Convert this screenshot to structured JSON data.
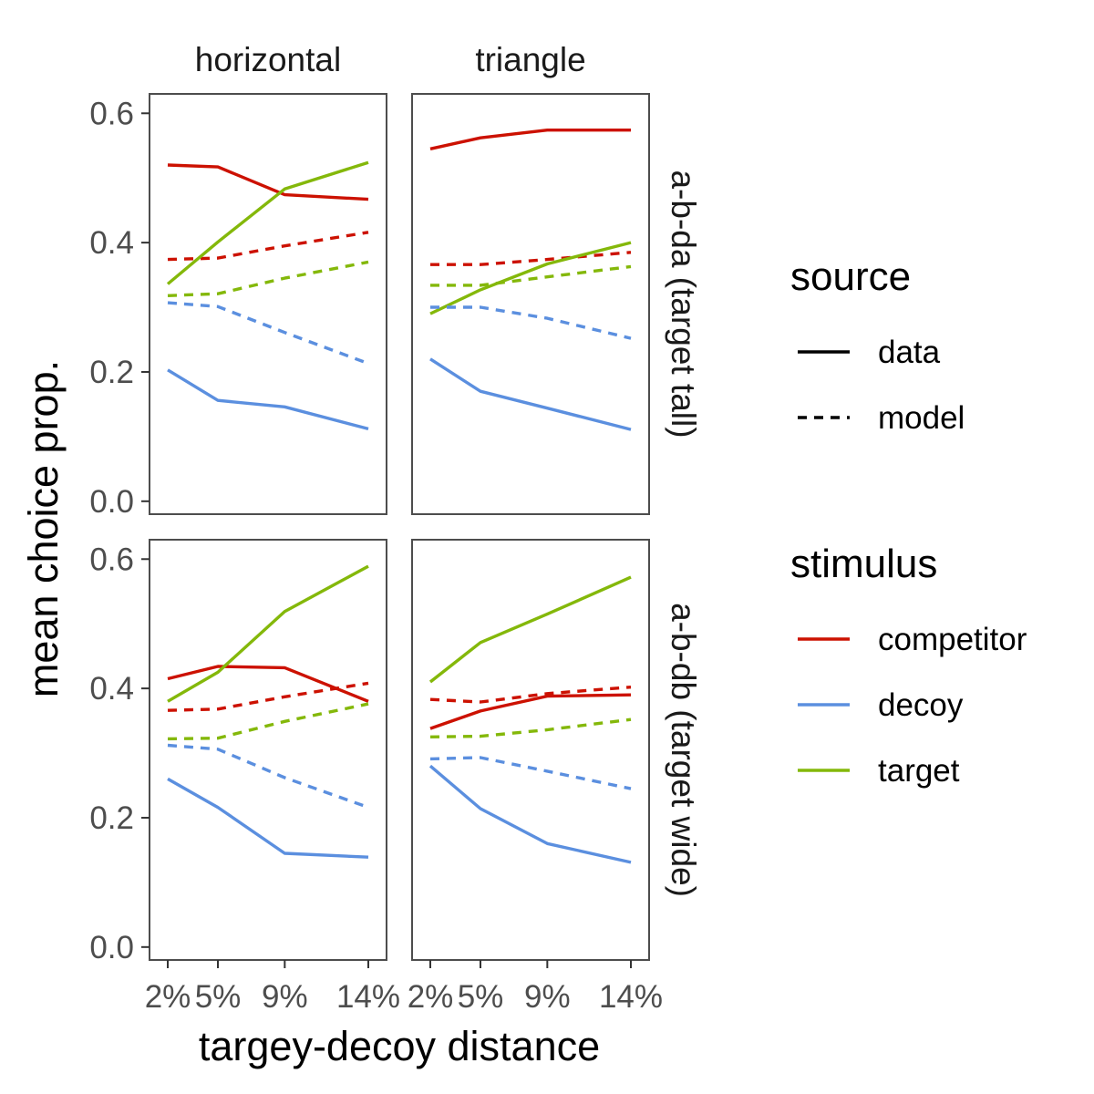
{
  "chart_data": {
    "type": "line",
    "xlabel": "targey-decoy distance",
    "ylabel": "mean choice prop.",
    "x_categories": [
      "2%",
      "5%",
      "9%",
      "14%"
    ],
    "x_values": [
      2,
      5,
      9,
      14
    ],
    "ylim": [
      -0.02,
      0.63
    ],
    "y_ticks": [
      0.0,
      0.2,
      0.4,
      0.6
    ],
    "y_tick_labels": [
      "0.0",
      "0.2",
      "0.4",
      "0.6"
    ],
    "grid": false,
    "facet_cols": [
      "horizontal",
      "triangle"
    ],
    "facet_rows": [
      "a-b-da (target tall)",
      "a-b-db (target wide)"
    ],
    "colors": {
      "competitor": "#cc1100",
      "decoy": "#5b8fdf",
      "target": "#84b80a"
    },
    "legend": {
      "position": "right",
      "source": {
        "title": "source",
        "items": [
          "data",
          "model"
        ]
      },
      "stimulus": {
        "title": "stimulus",
        "items": [
          "competitor",
          "decoy",
          "target"
        ]
      }
    },
    "panels": [
      {
        "col": "horizontal",
        "row": "a-b-da (target tall)",
        "series": [
          {
            "stimulus": "competitor",
            "source": "data",
            "values": [
              0.52,
              0.517,
              0.474,
              0.467
            ]
          },
          {
            "stimulus": "competitor",
            "source": "model",
            "values": [
              0.374,
              0.376,
              0.395,
              0.416
            ]
          },
          {
            "stimulus": "target",
            "source": "data",
            "values": [
              0.336,
              0.401,
              0.483,
              0.524
            ]
          },
          {
            "stimulus": "target",
            "source": "model",
            "values": [
              0.318,
              0.321,
              0.345,
              0.37
            ]
          },
          {
            "stimulus": "decoy",
            "source": "data",
            "values": [
              0.203,
              0.156,
              0.146,
              0.112
            ]
          },
          {
            "stimulus": "decoy",
            "source": "model",
            "values": [
              0.307,
              0.301,
              0.261,
              0.213
            ]
          }
        ]
      },
      {
        "col": "triangle",
        "row": "a-b-da (target tall)",
        "series": [
          {
            "stimulus": "competitor",
            "source": "data",
            "values": [
              0.545,
              0.562,
              0.574,
              0.574
            ]
          },
          {
            "stimulus": "competitor",
            "source": "model",
            "values": [
              0.366,
              0.366,
              0.374,
              0.385
            ]
          },
          {
            "stimulus": "target",
            "source": "data",
            "values": [
              0.29,
              0.327,
              0.367,
              0.4
            ]
          },
          {
            "stimulus": "target",
            "source": "model",
            "values": [
              0.334,
              0.334,
              0.347,
              0.363
            ]
          },
          {
            "stimulus": "decoy",
            "source": "data",
            "values": [
              0.22,
              0.17,
              0.144,
              0.111
            ]
          },
          {
            "stimulus": "decoy",
            "source": "model",
            "values": [
              0.3,
              0.3,
              0.283,
              0.252
            ]
          }
        ]
      },
      {
        "col": "horizontal",
        "row": "a-b-db (target wide)",
        "series": [
          {
            "stimulus": "competitor",
            "source": "data",
            "values": [
              0.415,
              0.434,
              0.432,
              0.38
            ]
          },
          {
            "stimulus": "competitor",
            "source": "model",
            "values": [
              0.366,
              0.368,
              0.387,
              0.408
            ]
          },
          {
            "stimulus": "target",
            "source": "data",
            "values": [
              0.38,
              0.425,
              0.519,
              0.589
            ]
          },
          {
            "stimulus": "target",
            "source": "model",
            "values": [
              0.322,
              0.323,
              0.349,
              0.376
            ]
          },
          {
            "stimulus": "decoy",
            "source": "data",
            "values": [
              0.26,
              0.216,
              0.145,
              0.139
            ]
          },
          {
            "stimulus": "decoy",
            "source": "model",
            "values": [
              0.312,
              0.306,
              0.262,
              0.216
            ]
          }
        ]
      },
      {
        "col": "triangle",
        "row": "a-b-db (target wide)",
        "series": [
          {
            "stimulus": "competitor",
            "source": "data",
            "values": [
              0.338,
              0.365,
              0.388,
              0.39
            ]
          },
          {
            "stimulus": "competitor",
            "source": "model",
            "values": [
              0.383,
              0.379,
              0.392,
              0.402
            ]
          },
          {
            "stimulus": "target",
            "source": "data",
            "values": [
              0.41,
              0.471,
              0.515,
              0.572
            ]
          },
          {
            "stimulus": "target",
            "source": "model",
            "values": [
              0.325,
              0.326,
              0.336,
              0.352
            ]
          },
          {
            "stimulus": "decoy",
            "source": "data",
            "values": [
              0.28,
              0.214,
              0.16,
              0.131
            ]
          },
          {
            "stimulus": "decoy",
            "source": "model",
            "values": [
              0.291,
              0.293,
              0.272,
              0.245
            ]
          }
        ]
      }
    ]
  }
}
